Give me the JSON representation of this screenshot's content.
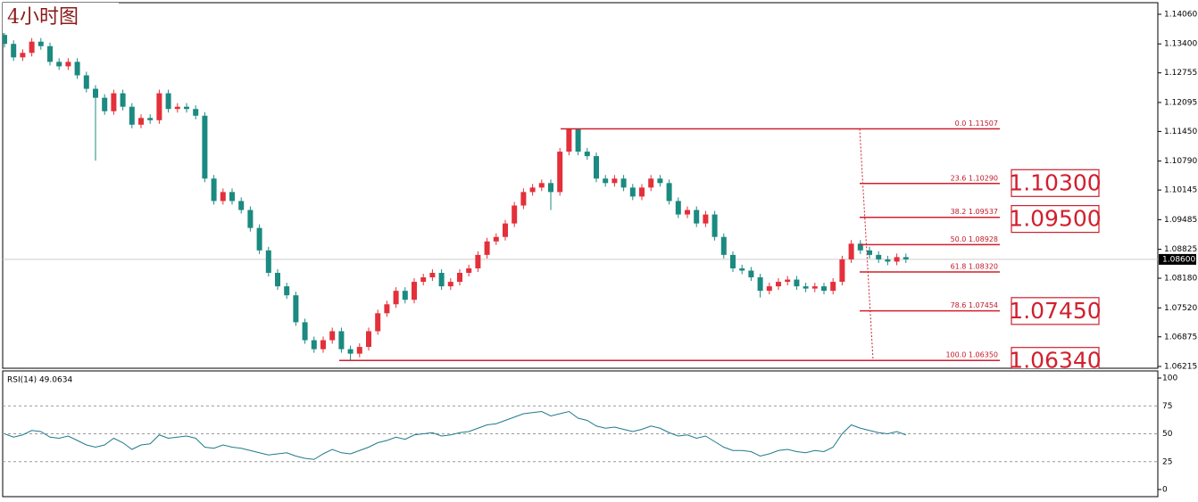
{
  "chart_data": {
    "type": "candlestick",
    "title": "4小时图",
    "up_color": "#e3303a",
    "down_color": "#1b8a80",
    "ylim": [
      1.06175,
      1.14318
    ],
    "yticks": [
      {
        "value": 1.1406,
        "label": "1.14060"
      },
      {
        "value": 1.134,
        "label": "1.13400"
      },
      {
        "value": 1.12755,
        "label": "1.12755"
      },
      {
        "value": 1.12095,
        "label": "1.12095"
      },
      {
        "value": 1.1145,
        "label": "1.11450"
      },
      {
        "value": 1.1079,
        "label": "1.10790"
      },
      {
        "value": 1.10145,
        "label": "1.10145"
      },
      {
        "value": 1.09485,
        "label": "1.09485"
      },
      {
        "value": 1.08825,
        "label": "1.08825"
      },
      {
        "value": 1.0818,
        "label": "1.08180"
      },
      {
        "value": 1.0752,
        "label": "1.07520"
      },
      {
        "value": 1.06875,
        "label": "1.06875"
      },
      {
        "value": 1.06215,
        "label": "1.06215"
      }
    ],
    "current_price": {
      "value": 1.086,
      "label": "1.08600"
    },
    "open": [
      1.136,
      1.134,
      1.131,
      1.132,
      1.1345,
      1.1335,
      1.13,
      1.129,
      1.13,
      1.127,
      1.124,
      1.122,
      1.119,
      1.123,
      1.12,
      1.116,
      1.1175,
      1.117,
      1.123,
      1.1195,
      1.12,
      1.1195,
      1.118,
      1.104,
      1.099,
      1.101,
      1.099,
      1.097,
      1.093,
      1.088,
      1.083,
      1.08,
      1.078,
      1.072,
      1.068,
      1.066,
      1.068,
      1.07,
      1.066,
      1.065,
      1.0665,
      1.07,
      1.074,
      1.076,
      1.079,
      1.077,
      1.081,
      1.082,
      1.083,
      1.08,
      1.081,
      1.083,
      1.084,
      1.087,
      1.09,
      1.091,
      1.094,
      1.098,
      1.101,
      1.102,
      1.103,
      1.101,
      1.11,
      1.115,
      1.11,
      1.109,
      1.104,
      1.103,
      1.104,
      1.102,
      1.1,
      1.102,
      1.104,
      1.103,
      1.099,
      1.096,
      1.097,
      1.094,
      1.096,
      1.091,
      1.087,
      1.084,
      1.0835,
      1.082,
      1.079,
      1.08,
      1.081,
      1.0815,
      1.08,
      1.0795,
      1.08,
      1.079,
      1.081,
      1.086,
      1.0895,
      1.088,
      1.087,
      1.086,
      1.0855,
      1.0865
    ],
    "high": [
      1.1368,
      1.1348,
      1.1328,
      1.1353,
      1.1353,
      1.1343,
      1.1308,
      1.1308,
      1.1308,
      1.1278,
      1.1248,
      1.1228,
      1.1238,
      1.1238,
      1.1208,
      1.1183,
      1.1183,
      1.1238,
      1.1238,
      1.1208,
      1.1208,
      1.1203,
      1.1188,
      1.1048,
      1.1018,
      1.1018,
      1.0998,
      1.0978,
      1.0938,
      1.0888,
      1.0838,
      1.0808,
      1.0788,
      1.0728,
      1.0688,
      1.0688,
      1.0708,
      1.0708,
      1.0668,
      1.0673,
      1.0708,
      1.0748,
      1.0768,
      1.0798,
      1.0798,
      1.0818,
      1.0828,
      1.0838,
      1.0838,
      1.0818,
      1.0838,
      1.0848,
      1.0878,
      1.0908,
      1.0918,
      1.0948,
      1.0988,
      1.1018,
      1.1028,
      1.1038,
      1.1038,
      1.1108,
      1.1151,
      1.1151,
      1.1108,
      1.1098,
      1.1048,
      1.1048,
      1.1048,
      1.1028,
      1.1028,
      1.1048,
      1.1048,
      1.1038,
      1.0998,
      1.0978,
      1.0978,
      1.0968,
      1.0968,
      1.0918,
      1.0878,
      1.0848,
      1.0843,
      1.0828,
      1.0808,
      1.0818,
      1.0823,
      1.0823,
      1.0808,
      1.0808,
      1.0808,
      1.0818,
      1.0868,
      1.0903,
      1.0903,
      1.0888,
      1.0878,
      1.0868,
      1.0873,
      1.0873
    ],
    "low": [
      1.1332,
      1.1302,
      1.1302,
      1.1312,
      1.1327,
      1.1292,
      1.1282,
      1.1282,
      1.1262,
      1.1232,
      1.108,
      1.1182,
      1.1182,
      1.1192,
      1.1152,
      1.1152,
      1.1162,
      1.1162,
      1.1187,
      1.1187,
      1.1187,
      1.1172,
      1.1032,
      1.0982,
      1.0982,
      1.0982,
      1.0962,
      1.0922,
      1.0872,
      1.0822,
      1.0792,
      1.0772,
      1.0712,
      1.0672,
      1.0652,
      1.0652,
      1.0672,
      1.0652,
      1.0635,
      1.0642,
      1.0657,
      1.0692,
      1.0732,
      1.0752,
      1.0762,
      1.0762,
      1.0802,
      1.0812,
      1.0792,
      1.0792,
      1.0802,
      1.0822,
      1.0832,
      1.0862,
      1.0892,
      1.0902,
      1.0932,
      1.0972,
      1.1002,
      1.1012,
      1.097,
      1.1002,
      1.1092,
      1.1092,
      1.1082,
      1.1032,
      1.1022,
      1.1022,
      1.1012,
      1.0992,
      1.0992,
      1.1012,
      1.1022,
      1.0982,
      1.0952,
      1.0952,
      1.0932,
      1.0932,
      1.0902,
      1.0862,
      1.0832,
      1.0827,
      1.0812,
      1.0775,
      1.0782,
      1.0792,
      1.0802,
      1.0792,
      1.0787,
      1.0787,
      1.0782,
      1.0782,
      1.0802,
      1.0852,
      1.0872,
      1.0862,
      1.0852,
      1.0847,
      1.0847,
      1.0852
    ],
    "close": [
      1.134,
      1.131,
      1.132,
      1.1345,
      1.1335,
      1.13,
      1.129,
      1.13,
      1.127,
      1.124,
      1.122,
      1.119,
      1.123,
      1.12,
      1.116,
      1.1175,
      1.117,
      1.123,
      1.1195,
      1.12,
      1.1195,
      1.118,
      1.104,
      1.099,
      1.101,
      1.099,
      1.097,
      1.093,
      1.088,
      1.083,
      1.08,
      1.078,
      1.072,
      1.068,
      1.066,
      1.068,
      1.07,
      1.066,
      1.065,
      1.0665,
      1.07,
      1.074,
      1.076,
      1.079,
      1.077,
      1.081,
      1.082,
      1.083,
      1.08,
      1.081,
      1.083,
      1.084,
      1.087,
      1.09,
      1.091,
      1.094,
      1.098,
      1.101,
      1.102,
      1.103,
      1.101,
      1.11,
      1.115,
      1.11,
      1.109,
      1.104,
      1.103,
      1.104,
      1.102,
      1.1,
      1.102,
      1.104,
      1.103,
      1.099,
      1.096,
      1.097,
      1.094,
      1.096,
      1.091,
      1.087,
      1.084,
      1.0835,
      1.082,
      1.079,
      1.08,
      1.081,
      1.0815,
      1.08,
      1.0795,
      1.08,
      1.079,
      1.081,
      1.086,
      1.0895,
      1.088,
      1.087,
      1.086,
      1.0855,
      1.0865,
      1.086
    ],
    "fib_levels": [
      {
        "value": 1.11507,
        "label": "0.0  1.11507"
      },
      {
        "value": 1.1029,
        "label": "23.6  1.10290"
      },
      {
        "value": 1.09537,
        "label": "38.2  1.09537"
      },
      {
        "value": 1.08928,
        "label": "50.0  1.08928"
      },
      {
        "value": 1.0832,
        "label": "61.8  1.08320"
      },
      {
        "value": 1.07454,
        "label": "78.6  1.07454"
      },
      {
        "value": 1.0635,
        "label": "100.0  1.06350"
      }
    ],
    "targets": [
      {
        "value": 1.103,
        "label": "1.10300"
      },
      {
        "value": 1.095,
        "label": "1.09500"
      },
      {
        "value": 1.0745,
        "label": "1.07450"
      },
      {
        "value": 1.0634,
        "label": "1.06340"
      }
    ],
    "indicator": {
      "label": "RSI(14) 49.0634",
      "color": "#1f7a8c",
      "ylim": [
        0,
        100
      ],
      "yticks": [
        100,
        75,
        50,
        25,
        0
      ],
      "values": [
        50,
        47,
        49,
        53,
        52,
        47,
        46,
        48,
        44,
        40,
        38,
        40,
        46,
        42,
        36,
        40,
        41,
        49,
        46,
        47,
        48,
        46,
        38,
        37,
        40,
        38,
        37,
        35,
        33,
        31,
        32,
        33,
        30,
        28,
        27,
        32,
        36,
        33,
        32,
        35,
        38,
        42,
        44,
        47,
        45,
        49,
        50,
        51,
        48,
        49,
        51,
        52,
        55,
        58,
        59,
        62,
        65,
        68,
        69,
        70,
        66,
        68,
        70,
        64,
        62,
        57,
        55,
        56,
        54,
        52,
        54,
        57,
        55,
        51,
        48,
        49,
        46,
        48,
        43,
        38,
        35,
        35,
        34,
        30,
        32,
        35,
        36,
        34,
        33,
        35,
        34,
        38,
        50,
        58,
        55,
        53,
        51,
        50,
        52,
        49
      ]
    }
  }
}
